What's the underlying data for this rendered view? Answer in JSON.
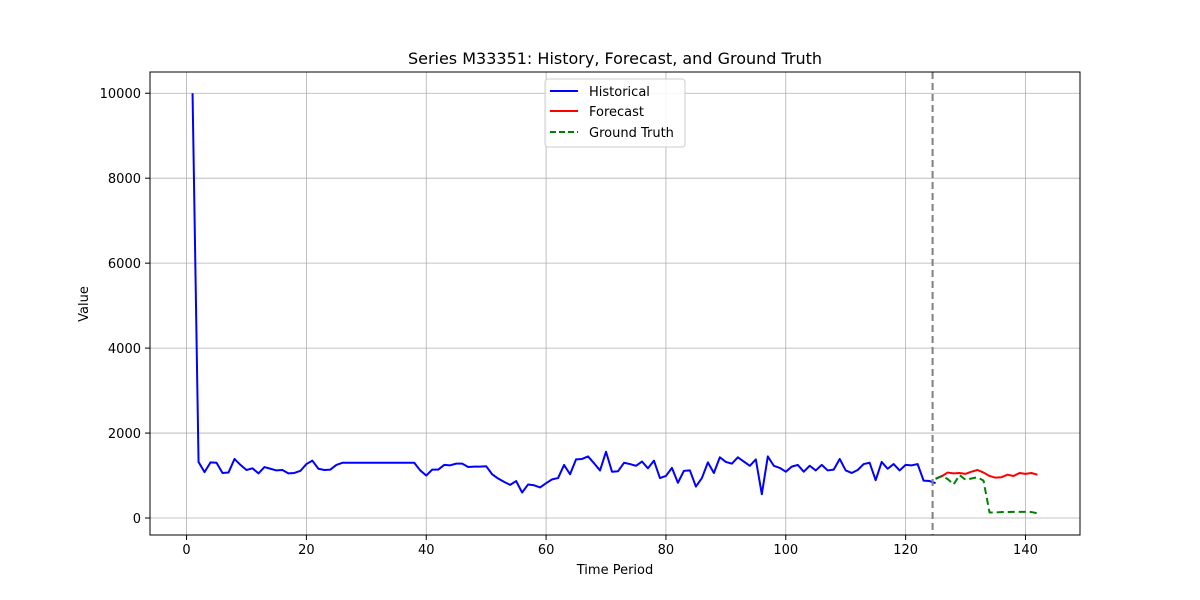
{
  "chart_data": {
    "type": "line",
    "title": "Series M33351: History, Forecast, and Ground Truth",
    "xlabel": "Time Period",
    "ylabel": "Value",
    "xlim": [
      -6.1,
      149.1
    ],
    "ylim": [
      -400,
      10500
    ],
    "x_ticks": [
      0,
      20,
      40,
      60,
      80,
      100,
      120,
      140
    ],
    "y_ticks": [
      0,
      2000,
      4000,
      6000,
      8000,
      10000
    ],
    "grid": true,
    "legend_position": "top-center",
    "forecast_start": 124.5,
    "series": [
      {
        "name": "Historical",
        "color": "#0000ff",
        "style": "solid",
        "x_start": 1,
        "values": [
          10000,
          1320,
          1080,
          1310,
          1300,
          1060,
          1070,
          1390,
          1250,
          1130,
          1170,
          1050,
          1200,
          1160,
          1120,
          1130,
          1050,
          1060,
          1110,
          1270,
          1350,
          1160,
          1130,
          1140,
          1250,
          1300,
          1300,
          1300,
          1300,
          1300,
          1300,
          1300,
          1300,
          1300,
          1300,
          1300,
          1300,
          1300,
          1120,
          1000,
          1140,
          1140,
          1250,
          1240,
          1280,
          1280,
          1200,
          1210,
          1210,
          1220,
          1030,
          930,
          850,
          780,
          870,
          600,
          790,
          770,
          720,
          820,
          910,
          940,
          1250,
          1030,
          1380,
          1390,
          1450,
          1290,
          1120,
          1560,
          1090,
          1100,
          1300,
          1270,
          1230,
          1330,
          1170,
          1350,
          940,
          990,
          1180,
          830,
          1110,
          1120,
          740,
          940,
          1310,
          1060,
          1430,
          1320,
          1280,
          1430,
          1330,
          1230,
          1380,
          560,
          1450,
          1230,
          1180,
          1090,
          1210,
          1250,
          1090,
          1230,
          1120,
          1250,
          1120,
          1140,
          1390,
          1120,
          1060,
          1130,
          1270,
          1300,
          890,
          1320,
          1160,
          1270,
          1120,
          1250,
          1240,
          1270,
          880,
          870,
          820
        ]
      },
      {
        "name": "Forecast",
        "color": "#ff0000",
        "style": "solid",
        "x_start": 125,
        "values": [
          930,
          980,
          1070,
          1050,
          1060,
          1040,
          1090,
          1130,
          1070,
          990,
          950,
          960,
          1020,
          990,
          1060,
          1040,
          1060,
          1020
        ]
      },
      {
        "name": "Ground Truth",
        "color": "#008000",
        "style": "dashed",
        "x_start": 125,
        "values": [
          920,
          990,
          920,
          790,
          1010,
          900,
          930,
          960,
          880,
          130,
          130,
          140,
          140,
          145,
          145,
          145,
          140,
          110
        ]
      }
    ]
  }
}
